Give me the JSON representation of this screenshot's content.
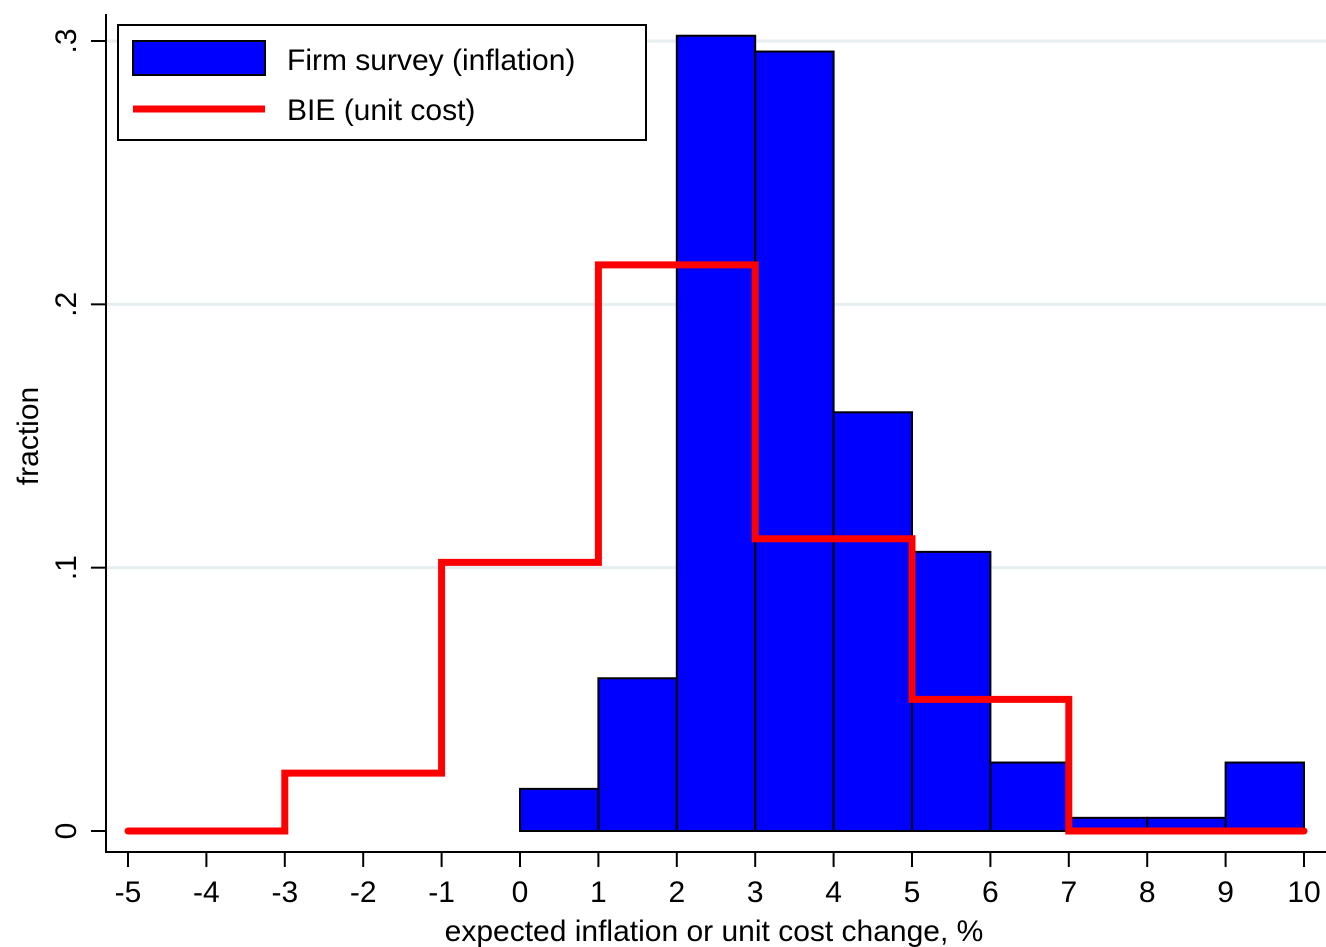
{
  "chart_data": {
    "type": "bar",
    "xlabel": "expected inflation or unit cost change, %",
    "ylabel": "fraction",
    "xlim": [
      -5,
      10
    ],
    "ylim": [
      0,
      0.3
    ],
    "x_ticks": [
      "-5",
      "-4",
      "-3",
      "-2",
      "-1",
      "0",
      "1",
      "2",
      "3",
      "4",
      "5",
      "6",
      "7",
      "8",
      "9",
      "10"
    ],
    "y_ticks": [
      {
        "value": 0,
        "label": "0"
      },
      {
        "value": 0.1,
        "label": ".1"
      },
      {
        "value": 0.2,
        "label": ".2"
      },
      {
        "value": 0.3,
        "label": ".3"
      }
    ],
    "grid": true,
    "legend_position": "top-left",
    "series": [
      {
        "name": "Firm survey (inflation)",
        "kind": "histogram",
        "color": "#0000ff",
        "bins": [
          {
            "from": 0,
            "to": 1,
            "value": 0.016
          },
          {
            "from": 1,
            "to": 2,
            "value": 0.058
          },
          {
            "from": 2,
            "to": 3,
            "value": 0.302
          },
          {
            "from": 3,
            "to": 4,
            "value": 0.296
          },
          {
            "from": 4,
            "to": 5,
            "value": 0.159
          },
          {
            "from": 5,
            "to": 6,
            "value": 0.106
          },
          {
            "from": 6,
            "to": 7,
            "value": 0.026
          },
          {
            "from": 7,
            "to": 8,
            "value": 0.005
          },
          {
            "from": 8,
            "to": 9,
            "value": 0.005
          },
          {
            "from": 9,
            "to": 10,
            "value": 0.026
          }
        ]
      },
      {
        "name": "BIE (unit cost)",
        "kind": "step",
        "color": "#ff0000",
        "bins": [
          {
            "from": -5,
            "to": -3,
            "value": 0.0
          },
          {
            "from": -3,
            "to": -1,
            "value": 0.022
          },
          {
            "from": -1,
            "to": 1,
            "value": 0.102
          },
          {
            "from": 1,
            "to": 3,
            "value": 0.215
          },
          {
            "from": 3,
            "to": 5,
            "value": 0.111
          },
          {
            "from": 5,
            "to": 7,
            "value": 0.05
          },
          {
            "from": 7,
            "to": 10,
            "value": 0.0
          }
        ]
      }
    ]
  }
}
